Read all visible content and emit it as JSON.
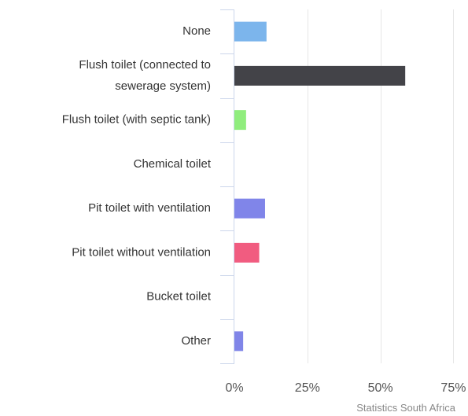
{
  "chart_data": {
    "type": "bar",
    "orientation": "horizontal",
    "categories": [
      [
        "None"
      ],
      [
        "Flush toilet (connected to",
        "sewerage system)"
      ],
      [
        "Flush toilet (with septic tank)"
      ],
      [
        "Chemical toilet"
      ],
      [
        "Pit toilet with ventilation"
      ],
      [
        "Pit toilet without ventilation"
      ],
      [
        "Bucket toilet"
      ],
      [
        "Other"
      ]
    ],
    "values": [
      11,
      58.5,
      4,
      0,
      10.5,
      8.5,
      0,
      3
    ],
    "colors": [
      "#7cb5ec",
      "#434348",
      "#90ed7d",
      "#f7a35c",
      "#8085e9",
      "#f15c80",
      "#e4d354",
      "#8085e8"
    ],
    "xlim": [
      0,
      80
    ],
    "ticks": [
      "0%",
      "25%",
      "50%",
      "75%"
    ],
    "tick_values": [
      0,
      25,
      50,
      75
    ],
    "grid": true,
    "legend": "none"
  },
  "credits": "Statistics South Africa"
}
